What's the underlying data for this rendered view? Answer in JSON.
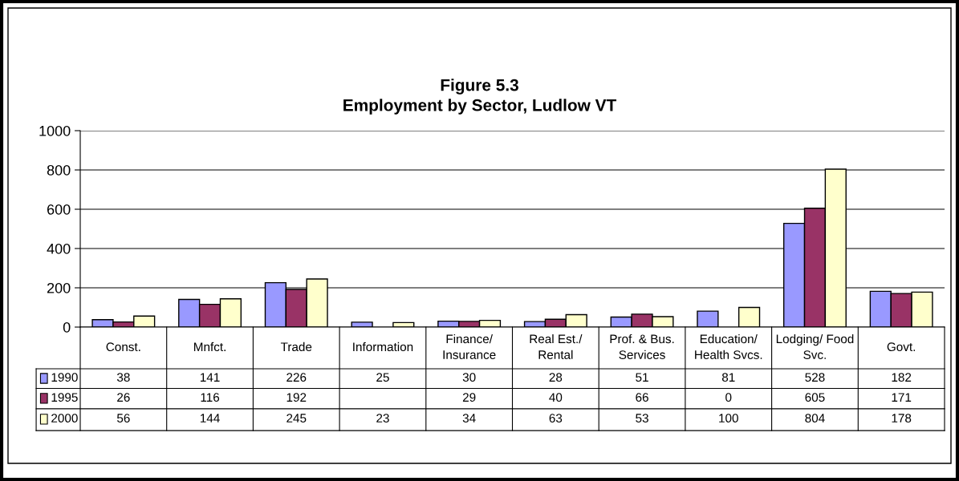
{
  "chart_data": {
    "type": "bar",
    "title": "Figure 5.3",
    "subtitle": "Employment by Sector, Ludlow VT",
    "categories": [
      "Const.",
      "Mnfct.",
      "Trade",
      "Information",
      "Finance/\nInsurance",
      "Real Est./\nRental",
      "Prof. & Bus.\nServices",
      "Education/\nHealth Svcs.",
      "Lodging/ Food\nSvc.",
      "Govt."
    ],
    "series": [
      {
        "name": "1990",
        "color": "#9999ff",
        "values": [
          38,
          141,
          226,
          25,
          30,
          28,
          51,
          81,
          528,
          182
        ]
      },
      {
        "name": "1995",
        "color": "#993366",
        "values": [
          26,
          116,
          192,
          null,
          29,
          40,
          66,
          0,
          605,
          171
        ]
      },
      {
        "name": "2000",
        "color": "#ffffcc",
        "values": [
          56,
          144,
          245,
          23,
          34,
          63,
          53,
          100,
          804,
          178
        ]
      }
    ],
    "ylim": [
      0,
      1000
    ],
    "yticks": [
      0,
      200,
      400,
      600,
      800,
      1000
    ],
    "grid": "y",
    "legend": "bottom left",
    "data_labels": true
  }
}
